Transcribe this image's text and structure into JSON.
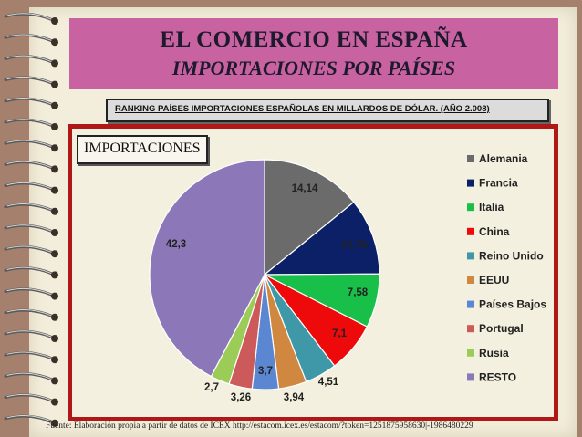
{
  "header": {
    "title": "EL COMERCIO EN ESPAÑA",
    "subtitle": "IMPORTACIONES POR PAÍSES",
    "ranking_label": "RANKING PAÍSES IMPORTACIONES ESPAÑOLAS  EN MILLARDOS DE DÓLAR. (AÑO 2.008)"
  },
  "chart_box": {
    "badge": "IMPORTACIONES"
  },
  "footer": {
    "source": "Fuente: Elaboración propia a partir de datos de ICEX http://estacom.icex.es/estacom/?token=1251875958630|-1986480229"
  },
  "colors": {
    "title_bg": "#c862a0",
    "frame_border": "#b01818"
  },
  "chart_data": {
    "type": "pie",
    "title": "",
    "categories": [
      "Alemania",
      "Francia",
      "Italia",
      "China",
      "Reino Unido",
      "EEUU",
      "Países Bajos",
      "Portugal",
      "Rusia",
      "RESTO"
    ],
    "values": [
      14.14,
      10.76,
      7.58,
      7.1,
      4.51,
      3.94,
      3.7,
      3.26,
      2.7,
      42.3
    ],
    "labels": [
      "14,14",
      "10,76",
      "7,58",
      "7,1",
      "4,51",
      "3,94",
      "3,7",
      "3,26",
      "2,7",
      "42,3"
    ],
    "colors": [
      "#6b6b6b",
      "#0b2066",
      "#18c04a",
      "#ee0a0a",
      "#3f98a8",
      "#d08840",
      "#5a86d2",
      "#cc5a5a",
      "#9ccc58",
      "#8c78b8"
    ],
    "legend_position": "right"
  }
}
